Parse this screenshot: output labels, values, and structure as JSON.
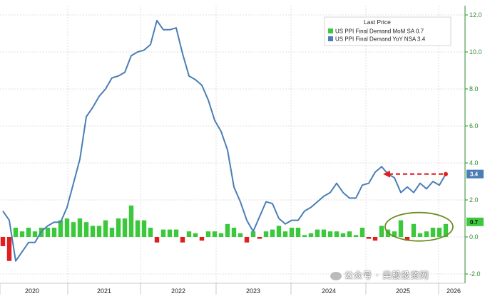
{
  "chart_data": {
    "type": "bar+line",
    "legend_title": "Last Price",
    "series": [
      {
        "name": "US PPI Final Demand MoM SA",
        "last_value_label": "0.7",
        "kind": "bar",
        "color": "#3cc83c",
        "negative_color": "#e02020",
        "values": [
          -0.5,
          -1.3,
          0.5,
          0.3,
          0.5,
          0.3,
          0.5,
          0.5,
          0.5,
          0.9,
          1.0,
          0.8,
          1.0,
          0.8,
          0.6,
          0.6,
          0.9,
          0.5,
          1.0,
          1.0,
          1.7,
          0.9,
          0.9,
          0.5,
          -0.3,
          0.4,
          0.4,
          0.4,
          -0.3,
          0.3,
          0.2,
          -0.2,
          0.3,
          0.3,
          0.2,
          0.7,
          0.5,
          0.2,
          -0.3,
          0.3,
          -0.1,
          0.3,
          0.4,
          0.6,
          0.3,
          0.5,
          0.5,
          0.1,
          0.2,
          0.4,
          0.4,
          0.3,
          0.3,
          0.2,
          0.3,
          0.1,
          0.5,
          -0.1,
          -0.2,
          0.6,
          0.4,
          0.3,
          0.9,
          -0.2,
          0.7,
          0.2,
          0.3,
          0.5,
          0.5,
          0.7
        ]
      },
      {
        "name": "US PPI Final Demand YoY NSA",
        "last_value_label": "3.4",
        "kind": "line",
        "color": "#4a7eb5",
        "values": [
          1.4,
          0.9,
          -1.3,
          -0.8,
          -0.3,
          -0.3,
          0.3,
          0.6,
          0.8,
          0.8,
          1.6,
          2.9,
          4.2,
          6.5,
          7.0,
          7.6,
          8.0,
          8.6,
          8.7,
          8.9,
          9.8,
          10.0,
          10.1,
          10.4,
          11.7,
          11.2,
          11.2,
          11.3,
          9.9,
          8.7,
          8.5,
          8.2,
          7.4,
          6.3,
          5.7,
          4.7,
          2.7,
          1.9,
          0.9,
          0.3,
          1.1,
          1.9,
          1.8,
          1.0,
          0.7,
          0.9,
          0.9,
          1.4,
          1.6,
          1.9,
          2.2,
          2.4,
          2.9,
          2.4,
          2.1,
          2.1,
          2.8,
          2.9,
          3.5,
          3.8,
          3.4,
          3.2,
          2.4,
          2.7,
          2.4,
          2.9,
          2.6,
          3.0,
          2.8,
          3.4
        ]
      }
    ],
    "x_axis": {
      "labels": [
        "2020",
        "2021",
        "2022",
        "2023",
        "2024",
        "2025",
        "2026"
      ]
    },
    "y_axis": {
      "side": "right",
      "ylim": [
        -2.5,
        12.5
      ],
      "ticks": [
        12.0,
        10.0,
        8.0,
        6.0,
        4.0,
        2.0,
        0.0,
        -2.0
      ],
      "tick_labels": [
        "12.0",
        "10.0",
        "8.0",
        "6.0",
        "4.0",
        "2.0",
        "0.0",
        "-2.0"
      ]
    },
    "grid": true,
    "annotations": [
      {
        "kind": "dashed-arrow",
        "color": "#e02020",
        "y_value": 3.4,
        "pointing": "left"
      },
      {
        "kind": "ellipse",
        "color": "#6b8e23",
        "around": "recent MoM bars"
      }
    ],
    "legend_position": "top-right"
  },
  "watermark": {
    "text": "公众号 · 美股投资网"
  }
}
